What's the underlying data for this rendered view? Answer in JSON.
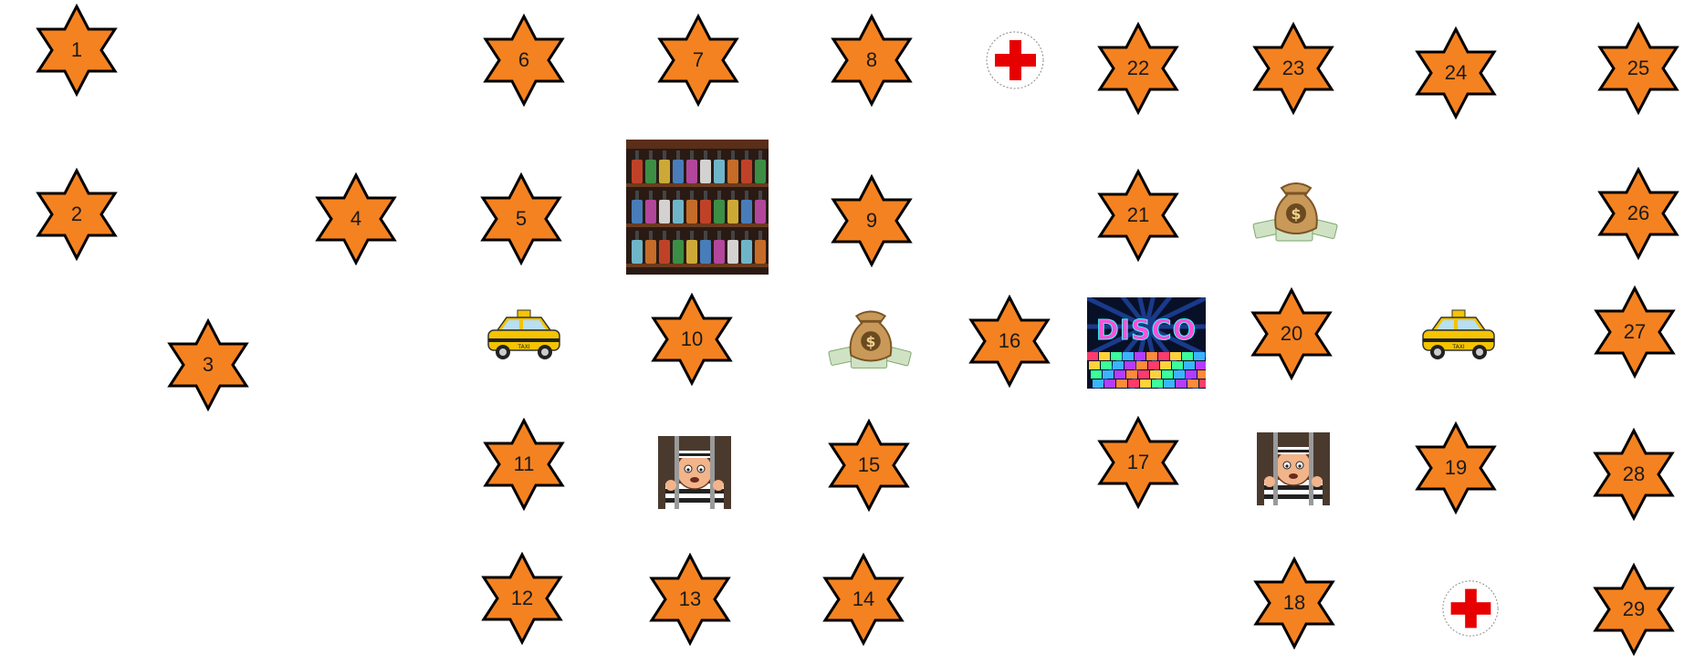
{
  "board": {
    "star_fill": "#f58220",
    "star_stroke": "#000000",
    "spaces": [
      {
        "id": "s1",
        "label": "1"
      },
      {
        "id": "s2",
        "label": "2"
      },
      {
        "id": "s3",
        "label": "3"
      },
      {
        "id": "s4",
        "label": "4"
      },
      {
        "id": "s5",
        "label": "5"
      },
      {
        "id": "s6",
        "label": "6"
      },
      {
        "id": "s7",
        "label": "7"
      },
      {
        "id": "s8",
        "label": "8"
      },
      {
        "id": "s9",
        "label": "9"
      },
      {
        "id": "s10",
        "label": "10"
      },
      {
        "id": "s11",
        "label": "11"
      },
      {
        "id": "s12",
        "label": "12"
      },
      {
        "id": "s13",
        "label": "13"
      },
      {
        "id": "s14",
        "label": "14"
      },
      {
        "id": "s15",
        "label": "15"
      },
      {
        "id": "s16",
        "label": "16"
      },
      {
        "id": "s17",
        "label": "17"
      },
      {
        "id": "s18",
        "label": "18"
      },
      {
        "id": "s19",
        "label": "19"
      },
      {
        "id": "s20",
        "label": "20"
      },
      {
        "id": "s21",
        "label": "21"
      },
      {
        "id": "s22",
        "label": "22"
      },
      {
        "id": "s23",
        "label": "23"
      },
      {
        "id": "s24",
        "label": "24"
      },
      {
        "id": "s25",
        "label": "25"
      },
      {
        "id": "s26",
        "label": "26"
      },
      {
        "id": "s27",
        "label": "27"
      },
      {
        "id": "s28",
        "label": "28"
      },
      {
        "id": "s29",
        "label": "29"
      }
    ],
    "special_tiles": [
      {
        "id": "hospital-1",
        "icon": "red-cross-icon"
      },
      {
        "id": "hospital-2",
        "icon": "red-cross-icon"
      },
      {
        "id": "bar",
        "icon": "bar-shelf-icon"
      },
      {
        "id": "money-1",
        "icon": "money-bag-icon"
      },
      {
        "id": "money-2",
        "icon": "money-bag-icon"
      },
      {
        "id": "taxi-1",
        "icon": "taxi-icon"
      },
      {
        "id": "taxi-2",
        "icon": "taxi-icon"
      },
      {
        "id": "jail-1",
        "icon": "jail-icon"
      },
      {
        "id": "jail-2",
        "icon": "jail-icon"
      },
      {
        "id": "disco",
        "icon": "disco-icon"
      }
    ],
    "disco_text": "DISCO",
    "money_symbol": "$",
    "taxi_text": "TAXI"
  }
}
